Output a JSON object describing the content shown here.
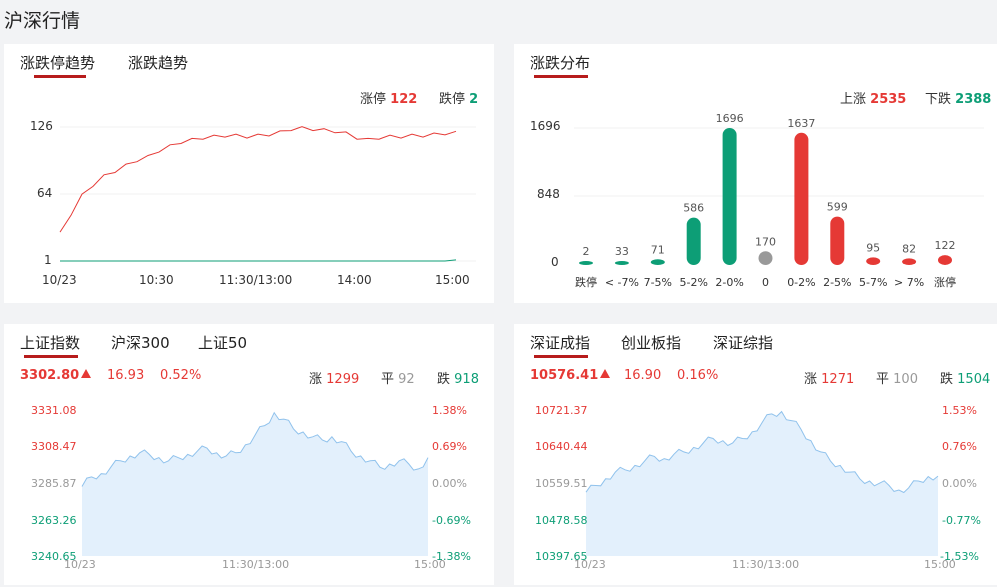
{
  "page_title": "沪深行情",
  "colors": {
    "up": "#e53935",
    "down": "#0d9e76",
    "flat": "#999999",
    "area_fill": "#e3f0fc",
    "area_line": "#90c2ec",
    "accent": "#b71c1c"
  },
  "limit_panel": {
    "tabs": [
      "涨跌停趋势",
      "涨跌趋势"
    ],
    "active_tab": 0,
    "limit_up_label": "涨停",
    "limit_up_value": "122",
    "limit_down_label": "跌停",
    "limit_down_value": "2",
    "y_ticks": [
      "126",
      "64",
      "1"
    ],
    "x_ticks": [
      "10/23",
      "10:30",
      "11:30/13:00",
      "14:00",
      "15:00"
    ]
  },
  "dist_panel": {
    "tabs": [
      "涨跌分布"
    ],
    "up_label": "上涨",
    "up_value": "2535",
    "down_label": "下跌",
    "down_value": "2388",
    "y_ticks": [
      "1696",
      "848",
      "0"
    ]
  },
  "index_panel_left": {
    "tabs": [
      "上证指数",
      "沪深300",
      "上证50"
    ],
    "active_tab": 0,
    "price": "3302.80",
    "change": "16.93",
    "change_pct": "0.52%",
    "up_label": "涨",
    "up_value": "1299",
    "flat_label": "平",
    "flat_value": "92",
    "down_label": "跌",
    "down_value": "918",
    "left_ticks": [
      "3331.08",
      "3308.47",
      "3285.87",
      "3263.26",
      "3240.65"
    ],
    "right_ticks": [
      "1.38%",
      "0.69%",
      "0.00%",
      "-0.69%",
      "-1.38%"
    ],
    "x_ticks": [
      "10/23",
      "11:30/13:00",
      "15:00"
    ]
  },
  "index_panel_right": {
    "tabs": [
      "深证成指",
      "创业板指",
      "深证综指"
    ],
    "active_tab": 0,
    "price": "10576.41",
    "change": "16.90",
    "change_pct": "0.16%",
    "up_label": "涨",
    "up_value": "1271",
    "flat_label": "平",
    "flat_value": "100",
    "down_label": "跌",
    "down_value": "1504",
    "left_ticks": [
      "10721.37",
      "10640.44",
      "10559.51",
      "10478.58",
      "10397.65"
    ],
    "right_ticks": [
      "1.53%",
      "0.76%",
      "0.00%",
      "-0.77%",
      "-1.53%"
    ],
    "x_ticks": [
      "10/23",
      "11:30/13:00",
      "15:00"
    ]
  },
  "chart_data": [
    {
      "type": "line",
      "series": [
        {
          "name": "涨停",
          "values": [
            28,
            45,
            62,
            72,
            80,
            85,
            90,
            95,
            98,
            104,
            108,
            112,
            114,
            116,
            117,
            118,
            118,
            117,
            118,
            119,
            121,
            124,
            125,
            124,
            123,
            122,
            120,
            116,
            114,
            116,
            117,
            117,
            118,
            118,
            119,
            120,
            122
          ]
        },
        {
          "name": "跌停",
          "values": [
            1,
            1,
            1,
            1,
            1,
            1,
            1,
            1,
            1,
            1,
            1,
            1,
            1,
            1,
            1,
            1,
            1,
            1,
            1,
            1,
            1,
            1,
            1,
            1,
            1,
            1,
            1,
            1,
            1,
            1,
            1,
            1,
            1,
            1,
            1,
            1,
            2
          ]
        }
      ],
      "ylim": [
        1,
        126
      ]
    },
    {
      "type": "bar",
      "categories": [
        "跌停",
        "< -7%",
        "7-5%",
        "5-2%",
        "2-0%",
        "0",
        "0-2%",
        "2-5%",
        "5-7%",
        "> 7%",
        "涨停"
      ],
      "values": [
        2,
        33,
        71,
        586,
        1696,
        170,
        1637,
        599,
        95,
        82,
        122
      ],
      "colors": [
        "#0d9e76",
        "#0d9e76",
        "#0d9e76",
        "#0d9e76",
        "#0d9e76",
        "#999999",
        "#e53935",
        "#e53935",
        "#e53935",
        "#e53935",
        "#e53935"
      ],
      "ylim": [
        0,
        1696
      ]
    },
    {
      "type": "area",
      "values": [
        3284,
        3290,
        3292,
        3296,
        3300,
        3303,
        3305,
        3304,
        3302,
        3300,
        3302,
        3304,
        3306,
        3308,
        3305,
        3303,
        3305,
        3310,
        3316,
        3322,
        3330,
        3326,
        3320,
        3318,
        3315,
        3313,
        3315,
        3312,
        3306,
        3303,
        3300,
        3296,
        3298,
        3300,
        3298,
        3295,
        3302
      ],
      "ylim": [
        3240.65,
        3331.08
      ]
    },
    {
      "type": "area",
      "values": [
        10540,
        10555,
        10570,
        10585,
        10590,
        10600,
        10610,
        10620,
        10615,
        10625,
        10630,
        10640,
        10650,
        10660,
        10655,
        10650,
        10660,
        10675,
        10695,
        10715,
        10720,
        10700,
        10680,
        10655,
        10630,
        10610,
        10600,
        10585,
        10570,
        10565,
        10560,
        10555,
        10545,
        10550,
        10565,
        10575,
        10576
      ],
      "ylim": [
        10397.65,
        10721.37
      ]
    }
  ]
}
